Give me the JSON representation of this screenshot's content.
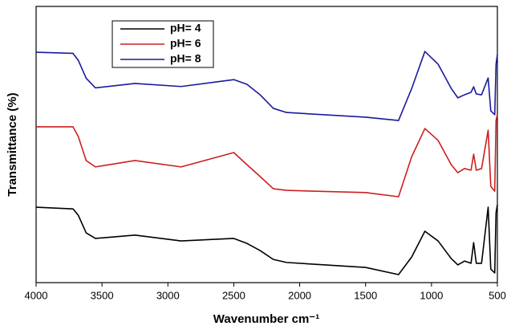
{
  "chart_data": {
    "type": "line",
    "xlabel": "Wavenumber cm⁻¹",
    "ylabel": "Transmittance (%)",
    "xlim": [
      4000,
      500
    ],
    "ylim": [
      0,
      100
    ],
    "xticks": [
      4000,
      3500,
      3000,
      2500,
      2000,
      1500,
      1000,
      500
    ],
    "x": [
      4000,
      3720,
      3680,
      3620,
      3550,
      3250,
      2900,
      2500,
      2400,
      2300,
      2200,
      2100,
      1500,
      1250,
      1150,
      1050,
      950,
      850,
      800,
      750,
      700,
      680,
      660,
      620,
      570,
      550,
      520,
      510,
      500
    ],
    "legend": "upper left",
    "series": [
      {
        "name": "pH= 4",
        "color": "#000000",
        "values": [
          27.3,
          26.7,
          24.4,
          18.0,
          16.0,
          17.2,
          15.1,
          16.0,
          14.2,
          11.6,
          8.4,
          7.3,
          5.5,
          2.9,
          9.3,
          18.6,
          15.1,
          8.7,
          6.4,
          7.8,
          7.0,
          14.5,
          7.0,
          7.0,
          27.3,
          4.9,
          3.5,
          25.3,
          28.2
        ]
      },
      {
        "name": "pH= 6",
        "color": "#cc1f1f",
        "values": [
          56.4,
          56.4,
          52.9,
          44.2,
          41.9,
          44.2,
          41.9,
          47.1,
          42.7,
          38.4,
          34.0,
          33.4,
          32.6,
          31.1,
          45.6,
          55.8,
          51.5,
          42.7,
          39.8,
          41.3,
          40.7,
          46.5,
          40.7,
          41.3,
          55.2,
          34.9,
          33.1,
          58.7,
          61.0
        ]
      },
      {
        "name": "pH= 8",
        "color": "#1a1a9c",
        "values": [
          83.4,
          83.0,
          80.5,
          74.0,
          70.5,
          72.1,
          71.0,
          73.5,
          71.8,
          68.0,
          63.1,
          61.6,
          59.9,
          58.7,
          70.3,
          83.7,
          79.1,
          70.3,
          66.9,
          68.0,
          68.9,
          70.9,
          68.3,
          68.0,
          74.1,
          62.2,
          60.8,
          79.1,
          82.6
        ]
      }
    ]
  }
}
